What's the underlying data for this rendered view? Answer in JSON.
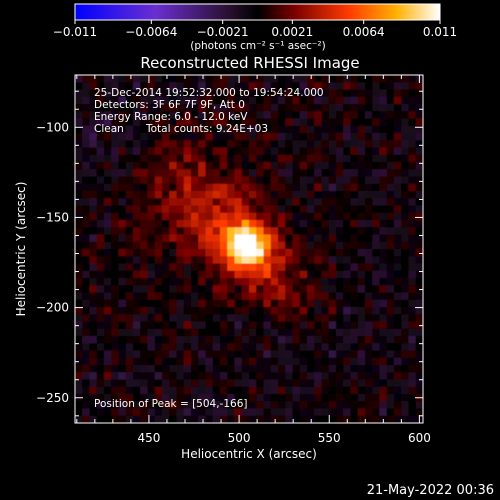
{
  "chart_data": {
    "type": "heatmap",
    "title": "Reconstructed RHESSI Image",
    "xlabel": "Heliocentric X (arcsec)",
    "ylabel": "Heliocentric Y (arcsec)",
    "xlim": [
      409,
      602
    ],
    "ylim": [
      -264,
      -71
    ],
    "x_ticks": [
      450,
      500,
      550,
      600
    ],
    "y_ticks": [
      -100,
      -150,
      -200,
      -250
    ],
    "x_tick_labels": [
      "450",
      "500",
      "550",
      "600"
    ],
    "y_tick_labels": [
      "−100",
      "−150",
      "−200",
      "−250"
    ],
    "colorbar": {
      "range": [
        -0.011,
        0.011
      ],
      "tick_values": [
        -0.011,
        -0.0064,
        -0.0021,
        0.0021,
        0.0064,
        0.011
      ],
      "tick_labels": [
        "−0.011",
        "−0.0064",
        "−0.0021",
        "0.0021",
        "0.0064",
        "0.011"
      ],
      "unit_label": "(photons cm⁻² s⁻¹ asec⁻²)",
      "colormap": "blue-purple-black-red-yellow-white"
    },
    "annotations": {
      "time_range": "25-Dec-2014 19:52:32.000 to 19:54:24.000",
      "detectors": "Detectors: 3F 6F 7F 9F, Att 0",
      "energy_range": "Energy Range: 6.0 - 12.0 keV",
      "algorithm": "Clean",
      "total_counts": "Total counts: 9.24E+03",
      "peak_position": "Position of Peak = [504,-166]"
    },
    "peak": {
      "x": 504,
      "y": -166,
      "value": 0.011
    },
    "diffuse_lobe": {
      "x": 470,
      "y": -140
    }
  },
  "footer": {
    "timestamp": "21-May-2022 00:36"
  },
  "colors": {
    "background": "#000000",
    "text": "#ffffff"
  }
}
